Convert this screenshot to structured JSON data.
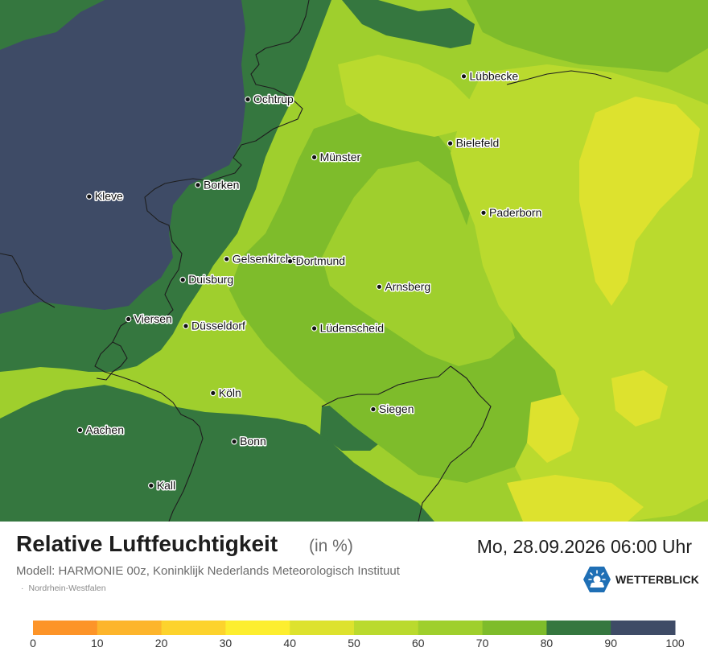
{
  "title": "Relative Luftfeuchtigkeit",
  "unit": "(in %)",
  "datetime": "Mo, 28.09.2026 06:00 Uhr",
  "model": "Modell: HARMONIE 00z, Koninklijk Nederlands Meteorologisch Instituut",
  "region": "Nordrhein-Westfalen",
  "region_bullet": "·",
  "brand": "WETTERBLICK",
  "brand_icon": "sun-cloud-logo-icon",
  "cities": [
    {
      "name": "Lübbecke",
      "lon": 8.62,
      "lat": 52.31
    },
    {
      "name": "Ochtrup",
      "lon": 7.19,
      "lat": 52.21
    },
    {
      "name": "Bielefeld",
      "lon": 8.53,
      "lat": 52.02
    },
    {
      "name": "Münster",
      "lon": 7.63,
      "lat": 51.96
    },
    {
      "name": "Borken",
      "lon": 6.86,
      "lat": 51.84
    },
    {
      "name": "Kleve",
      "lon": 6.14,
      "lat": 51.79
    },
    {
      "name": "Paderborn",
      "lon": 8.75,
      "lat": 51.72
    },
    {
      "name": "Gelsenkirchen",
      "lon": 7.05,
      "lat": 51.52
    },
    {
      "name": "Dortmund",
      "lon": 7.47,
      "lat": 51.51
    },
    {
      "name": "Duisburg",
      "lon": 6.76,
      "lat": 51.43
    },
    {
      "name": "Arnsberg",
      "lon": 8.06,
      "lat": 51.4
    },
    {
      "name": "Viersen",
      "lon": 6.4,
      "lat": 51.26
    },
    {
      "name": "Düsseldorf",
      "lon": 6.78,
      "lat": 51.23
    },
    {
      "name": "Lüdenscheid",
      "lon": 7.63,
      "lat": 51.22
    },
    {
      "name": "Köln",
      "lon": 6.96,
      "lat": 50.94
    },
    {
      "name": "Siegen",
      "lon": 8.02,
      "lat": 50.87
    },
    {
      "name": "Aachen",
      "lon": 6.08,
      "lat": 50.78
    },
    {
      "name": "Bonn",
      "lon": 7.1,
      "lat": 50.73
    },
    {
      "name": "Kall",
      "lon": 6.55,
      "lat": 50.54
    }
  ],
  "legend": {
    "stops": [
      "0",
      "10",
      "20",
      "30",
      "40",
      "50",
      "60",
      "70",
      "80",
      "90",
      "100"
    ],
    "colors": [
      "#fd9428",
      "#fdb52c",
      "#fdd32d",
      "#fdee2f",
      "#dde22e",
      "#bada2e",
      "#9fcf2d",
      "#7ebc2b",
      "#35773f",
      "#3e4b66"
    ]
  },
  "colors": {
    "very_wet": "#3e4b66",
    "wet": "#35773f",
    "medium": "#7ebc2b",
    "medium_dry": "#9fcf2d",
    "dry": "#bada2e",
    "driest": "#dde22e",
    "border": "#1e1e1e"
  }
}
